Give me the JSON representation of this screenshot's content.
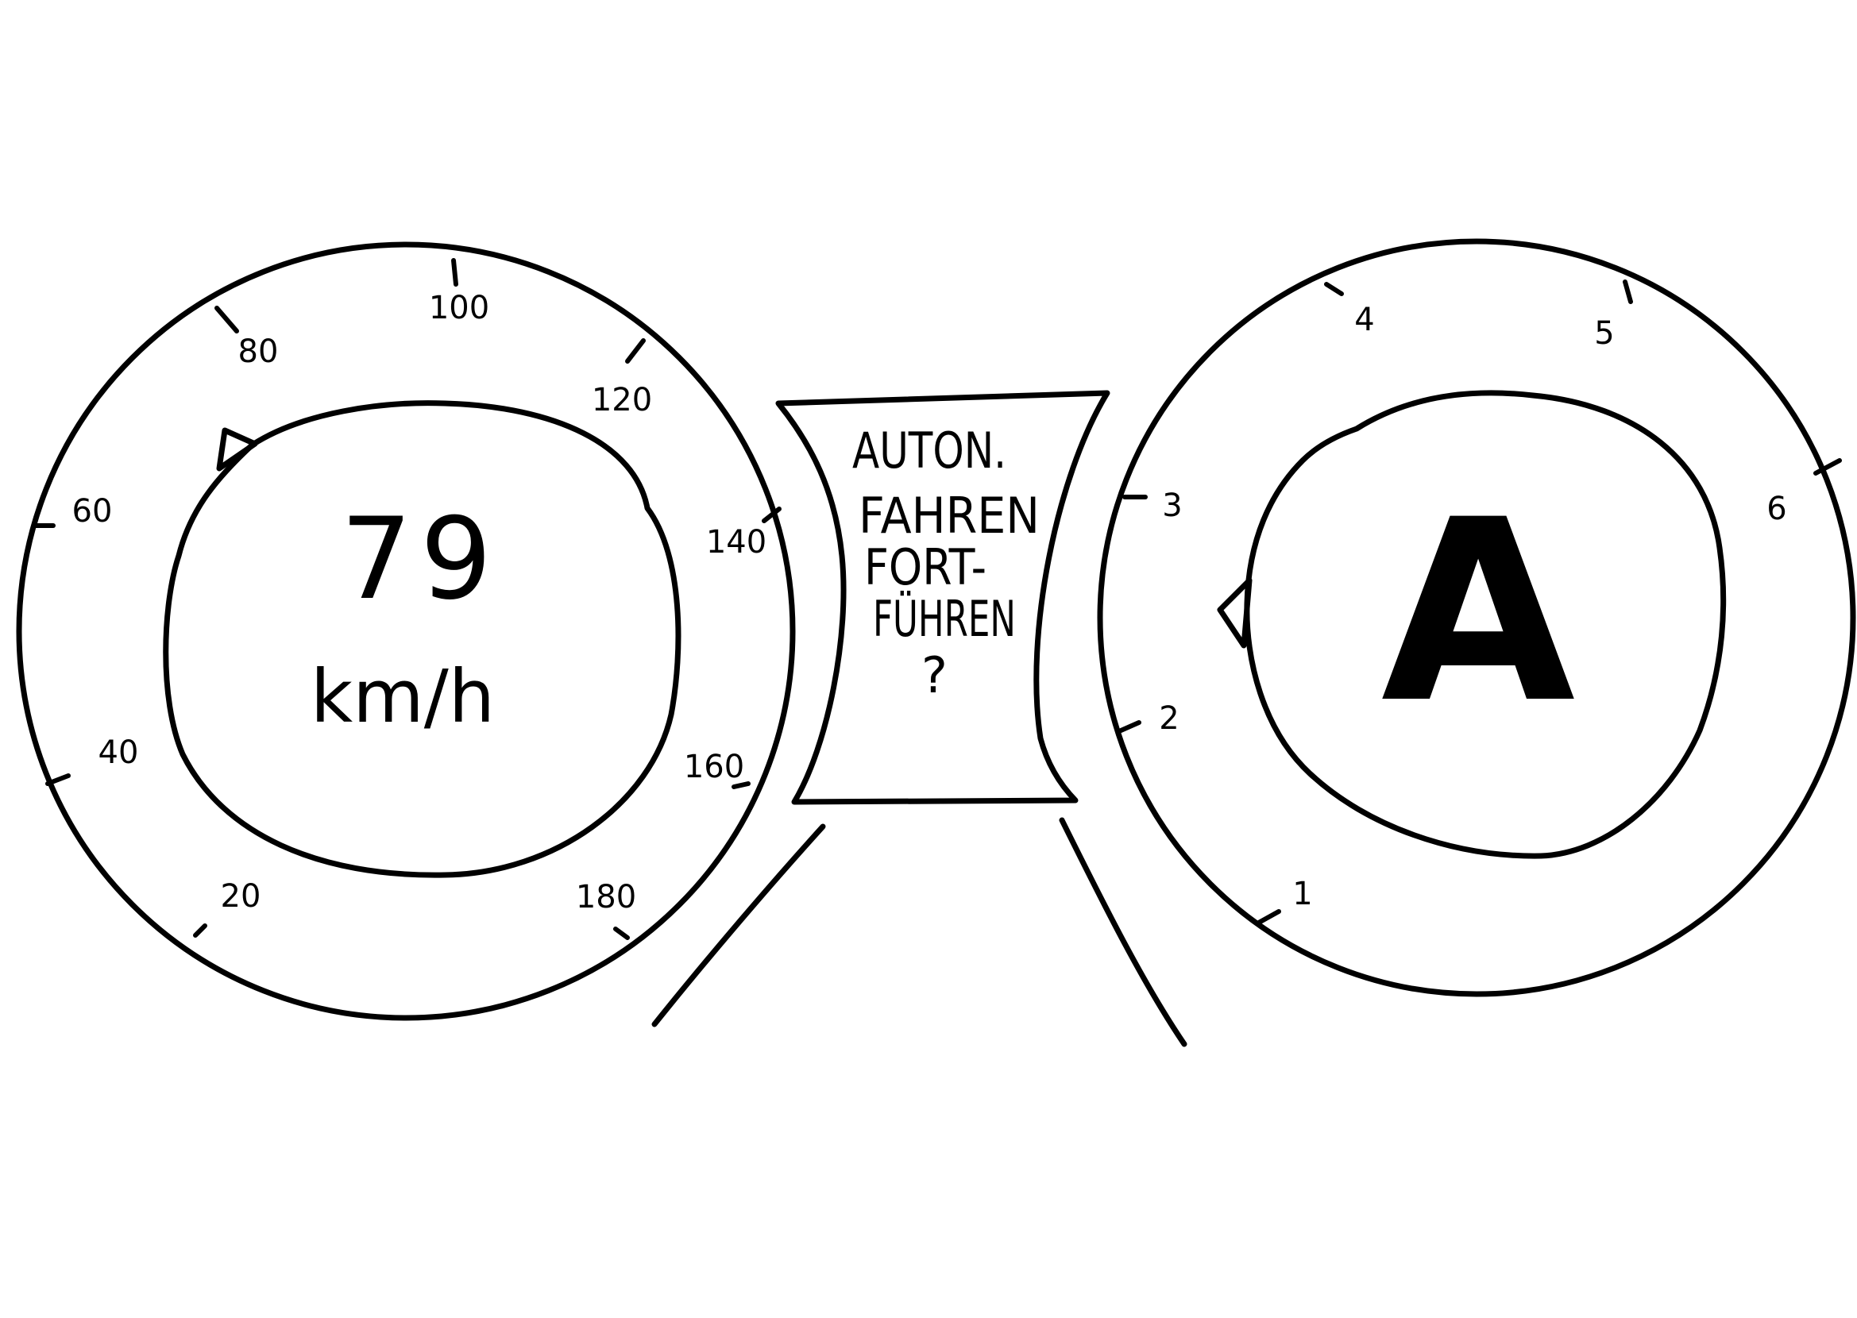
{
  "speedometer": {
    "value": "79",
    "unit": "km/h",
    "ticks": [
      "20",
      "40",
      "60",
      "80",
      "100",
      "120",
      "140",
      "160",
      "180"
    ]
  },
  "center_panel": {
    "lines": [
      "AUTON.",
      "FAHREN",
      "FORT-",
      "FÜHREN",
      "?"
    ]
  },
  "gear_gauge": {
    "value": "A",
    "ticks": [
      "1",
      "2",
      "3",
      "4",
      "5",
      "6"
    ]
  },
  "colors": {
    "ink": "#000000",
    "paper": "#ffffff"
  }
}
